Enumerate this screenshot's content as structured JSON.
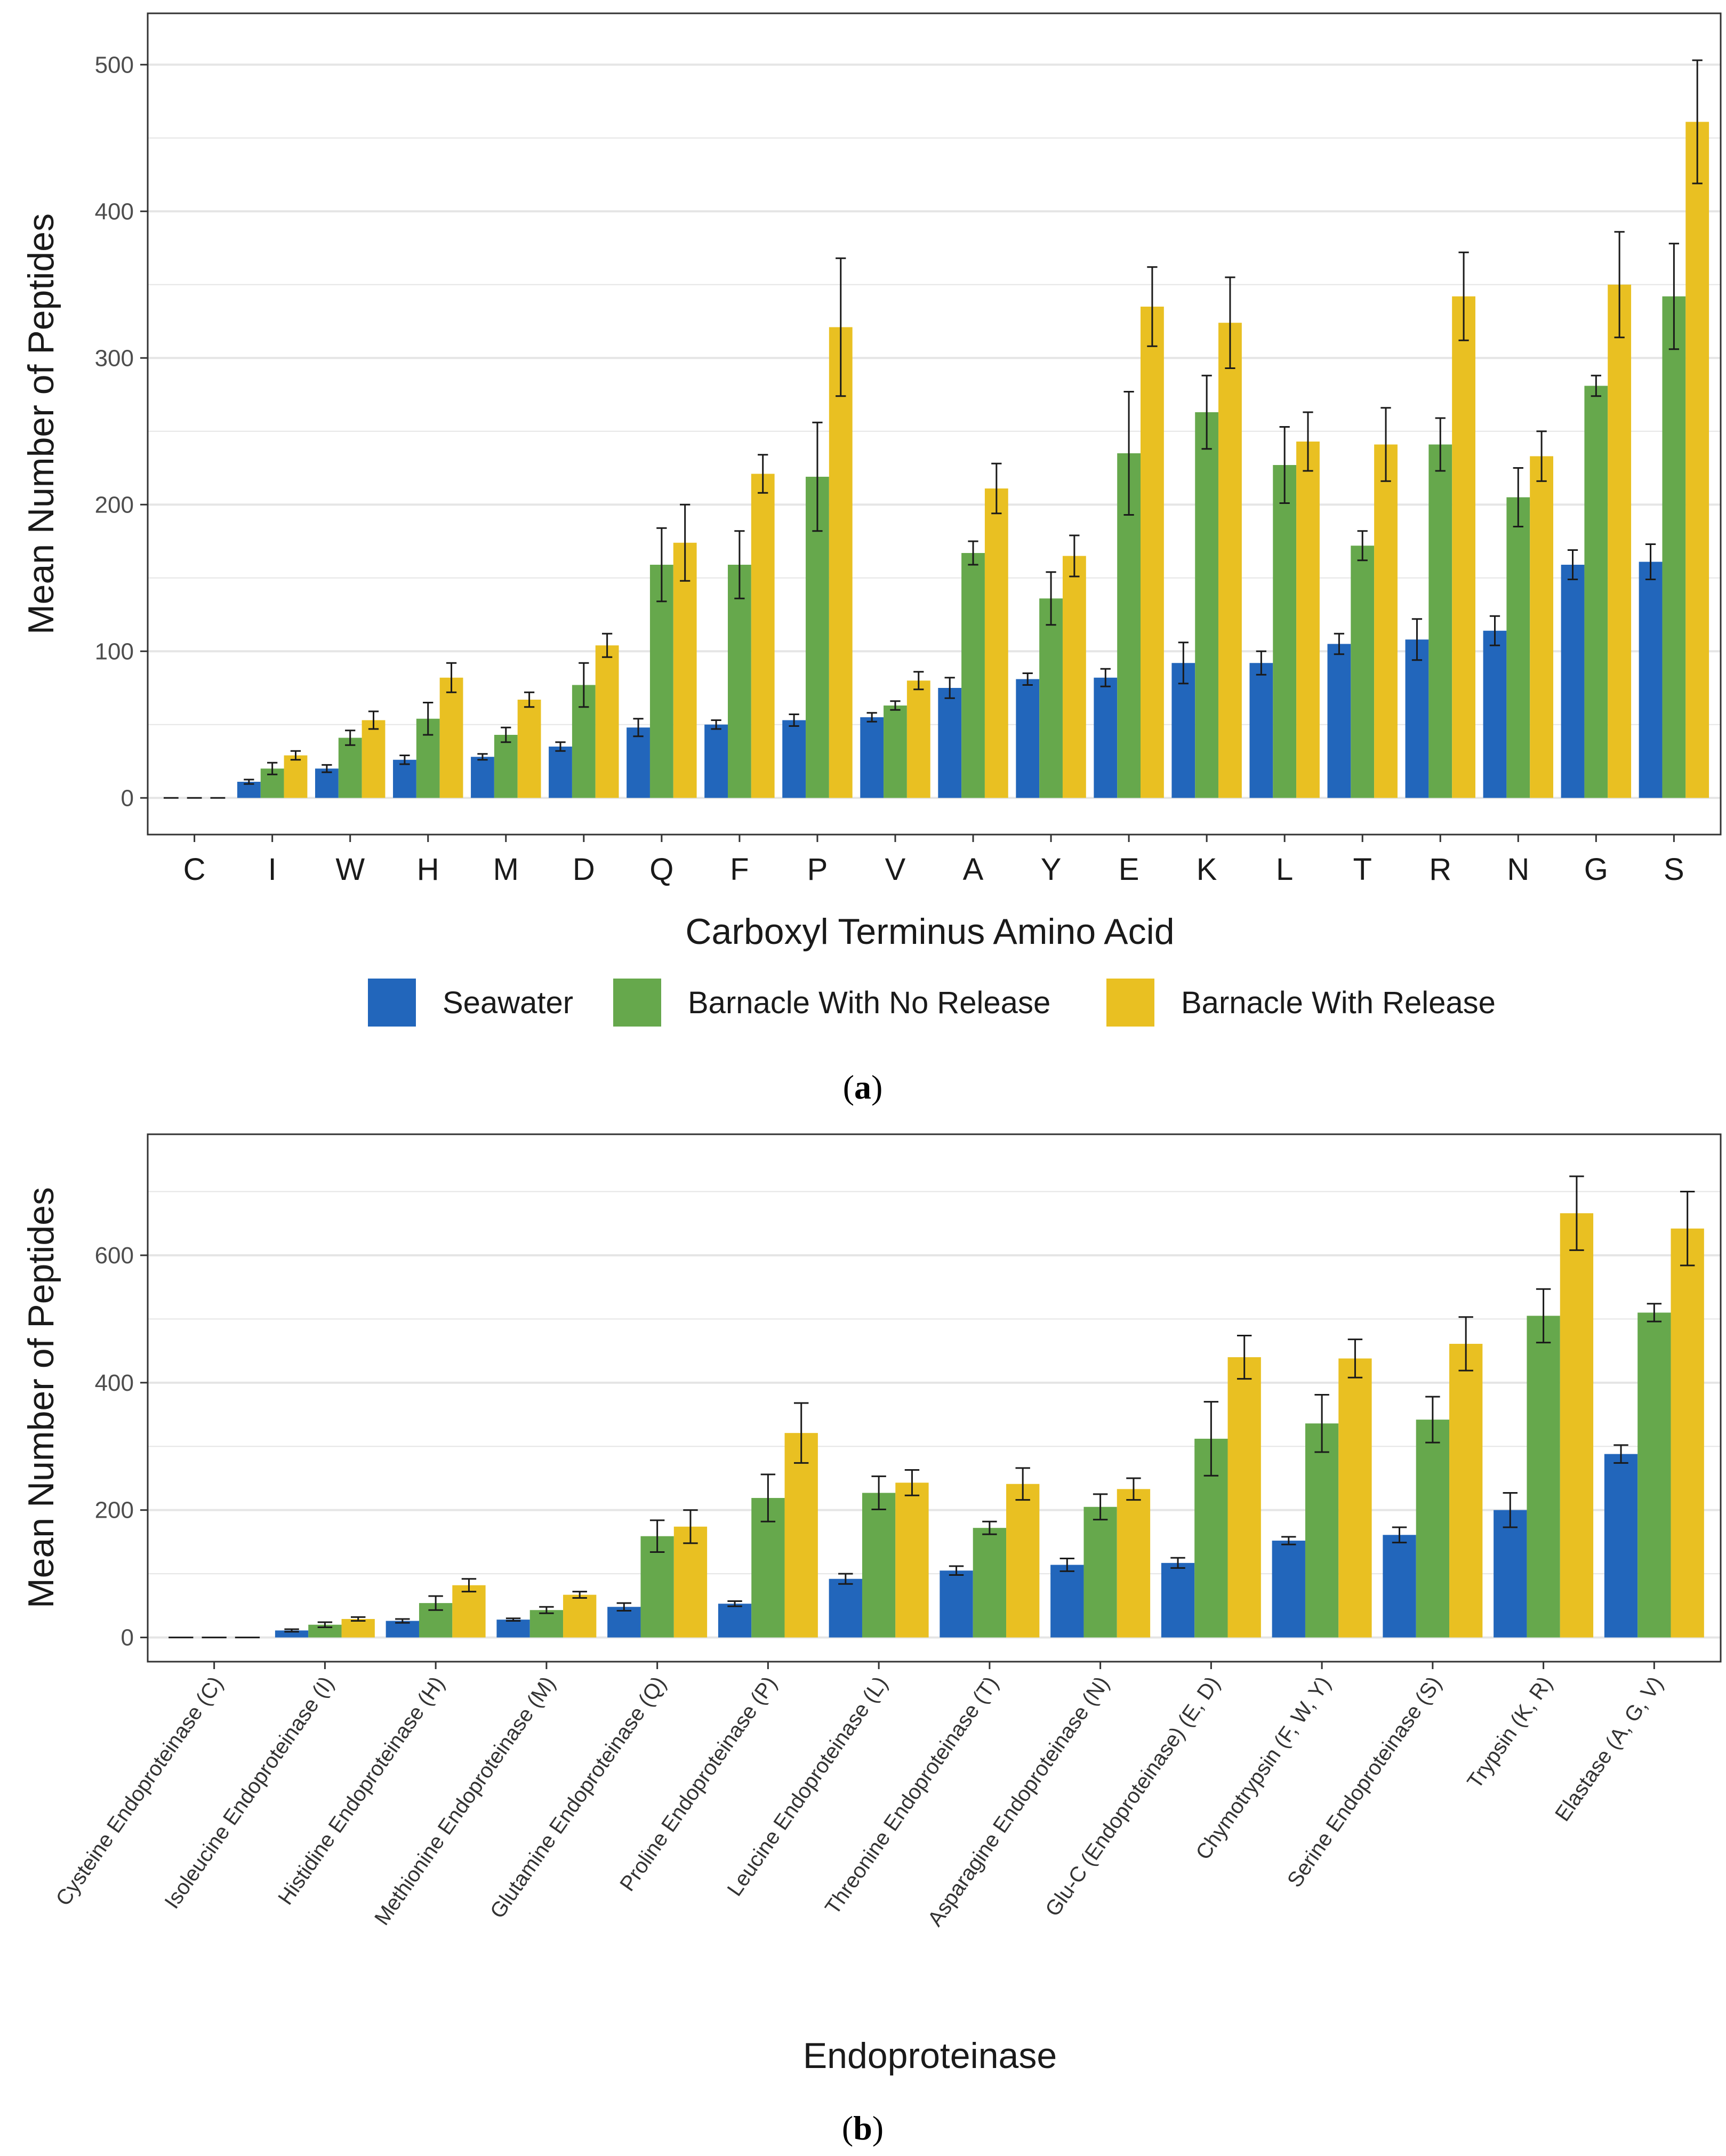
{
  "colors": {
    "seawater": "#2266BB",
    "no_release": "#66A84C",
    "with_release": "#E9C022",
    "grid": "#e5e5e5",
    "axis": "#333333",
    "errorbar": "#1a1a1a"
  },
  "legend": {
    "items": [
      "Seawater",
      "Barnacle With No Release",
      "Barnacle With Release"
    ]
  },
  "chart_data": [
    {
      "panel": "(a)",
      "panel_letter": "a",
      "type": "bar",
      "xlabel": "Carboxyl Terminus Amino Acid",
      "ylabel": "Mean Number of Peptides",
      "ylim": [
        -25,
        535
      ],
      "yticks": [
        0,
        100,
        200,
        300,
        400,
        500
      ],
      "categories": [
        "C",
        "I",
        "W",
        "H",
        "M",
        "D",
        "Q",
        "F",
        "P",
        "V",
        "A",
        "Y",
        "E",
        "K",
        "L",
        "T",
        "R",
        "N",
        "G",
        "S"
      ],
      "series": [
        {
          "name": "Seawater",
          "values": [
            0,
            11,
            20,
            26,
            28,
            35,
            48,
            50,
            53,
            55,
            75,
            81,
            82,
            92,
            92,
            105,
            108,
            114,
            159,
            161
          ],
          "err": [
            0,
            1.5,
            2.5,
            3,
            2,
            3,
            6,
            3,
            4,
            3,
            7,
            4,
            6,
            14,
            8,
            7,
            14,
            10,
            10,
            12
          ]
        },
        {
          "name": "Barnacle With No Release",
          "values": [
            0,
            20,
            41,
            54,
            43,
            77,
            159,
            159,
            219,
            63,
            167,
            136,
            235,
            263,
            227,
            172,
            241,
            205,
            281,
            342
          ],
          "err": [
            0,
            4,
            5,
            11,
            5,
            15,
            25,
            23,
            37,
            3,
            8,
            18,
            42,
            25,
            26,
            10,
            18,
            20,
            7,
            36
          ]
        },
        {
          "name": "Barnacle With Release",
          "values": [
            0,
            29,
            53,
            82,
            67,
            104,
            174,
            221,
            321,
            80,
            211,
            165,
            335,
            324,
            243,
            241,
            342,
            233,
            350,
            461
          ],
          "err": [
            0,
            3,
            6,
            10,
            5,
            8,
            26,
            13,
            47,
            6,
            17,
            14,
            27,
            31,
            20,
            25,
            30,
            17,
            36,
            42
          ]
        }
      ]
    },
    {
      "panel": "(b)",
      "panel_letter": "b",
      "type": "bar",
      "xlabel": "Endoproteinase",
      "ylabel": "Mean Number of Peptides",
      "ylim": [
        -38,
        790
      ],
      "yticks": [
        0,
        200,
        400,
        600
      ],
      "categories": [
        "Cysteine Endoproteinase (C)",
        "Isoleucine Endoproteinase (I)",
        "Histidine Endoproteinase (H)",
        "Methionine Endoproteinase (M)",
        "Glutamine Endoproteinase (Q)",
        "Proline Endoproteinase (P)",
        "Leucine Endoproteinase (L)",
        "Threonine Endoproteinase (T)",
        "Asparagine Endoproteinase (N)",
        "Glu-C (Endoproteinase) (E, D)",
        "Chymotrypsin (F, W, Y)",
        "Serine Endoproteinase (S)",
        "Trypsin (K, R)",
        "Elastase (A, G, V)"
      ],
      "series": [
        {
          "name": "Seawater",
          "values": [
            0,
            11,
            26,
            28,
            48,
            53,
            92,
            105,
            114,
            117,
            152,
            161,
            200,
            288
          ],
          "err": [
            0,
            2,
            3,
            2,
            6,
            4,
            8,
            7,
            10,
            8,
            6,
            12,
            27,
            14
          ]
        },
        {
          "name": "Barnacle With No Release",
          "values": [
            0,
            20,
            54,
            43,
            159,
            219,
            227,
            172,
            205,
            312,
            336,
            342,
            505,
            510
          ],
          "err": [
            0,
            4,
            11,
            5,
            25,
            37,
            26,
            10,
            20,
            58,
            45,
            36,
            42,
            14
          ]
        },
        {
          "name": "Barnacle With Release",
          "values": [
            0,
            29,
            82,
            67,
            174,
            321,
            243,
            241,
            233,
            440,
            438,
            461,
            666,
            642
          ],
          "err": [
            0,
            3,
            10,
            5,
            26,
            47,
            20,
            25,
            17,
            34,
            30,
            42,
            58,
            58
          ]
        }
      ]
    }
  ]
}
